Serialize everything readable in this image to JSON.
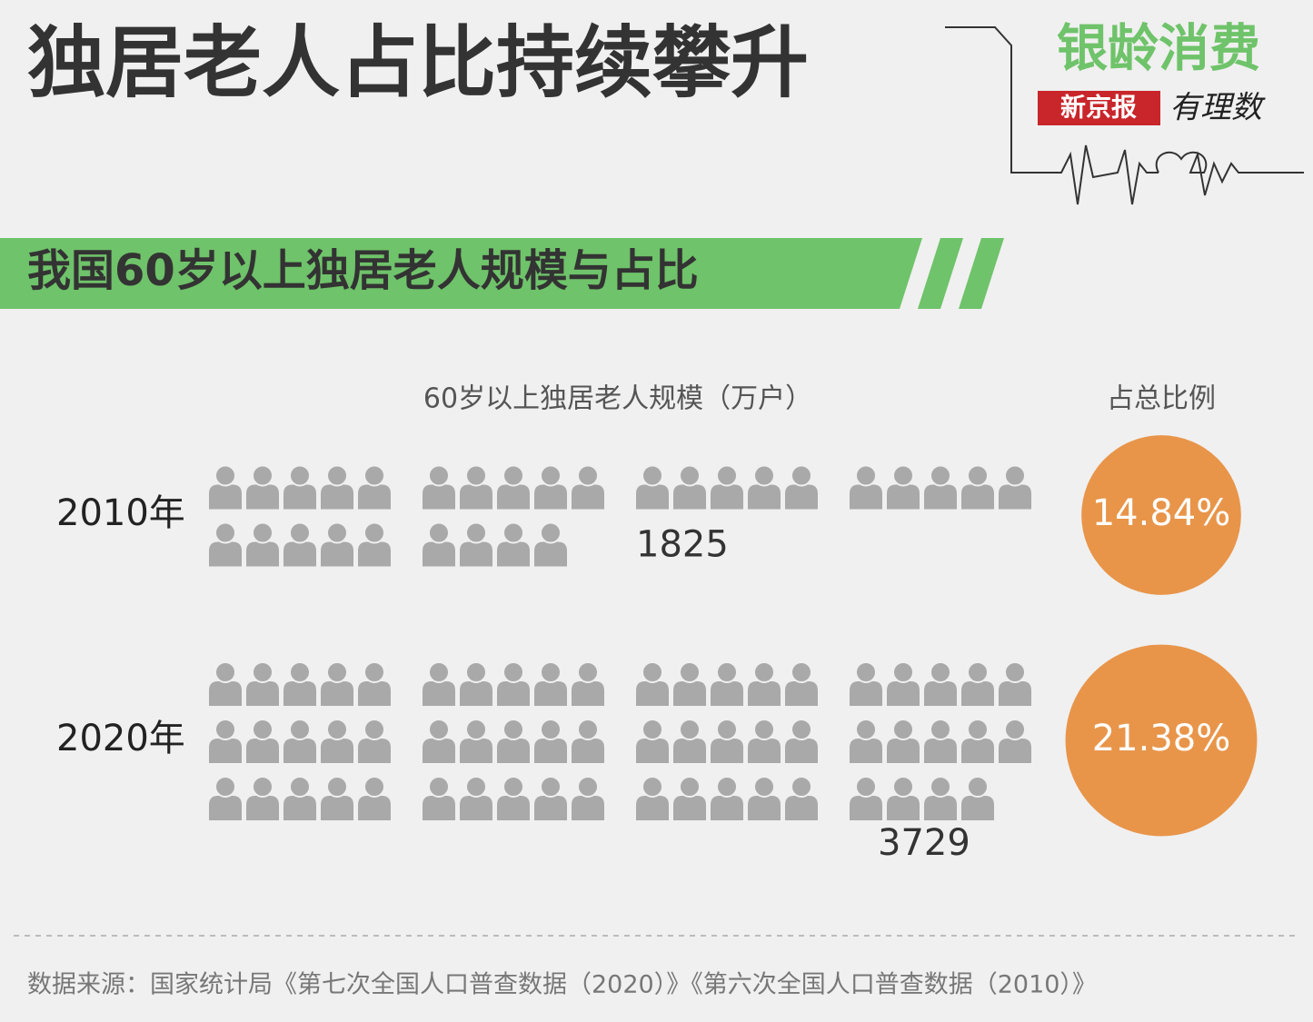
{
  "chart_data": {
    "type": "pictogram",
    "title": "独居老人占比持续攀升",
    "subtitle": "我国60岁以上独居老人规模与占比",
    "value_label": "60岁以上独居老人规模（万户）",
    "share_label": "占总比例",
    "categories": [
      "2010年",
      "2020年"
    ],
    "values": [
      1825,
      3729
    ],
    "shares": [
      14.84,
      21.38
    ],
    "share_labels": [
      "14.84%",
      "21.38%"
    ],
    "icon_color": "#a9a9a9",
    "share_color": "#e8954a",
    "banner_color": "#6fc36a",
    "source": "数据来源：国家统计局《第七次全国人口普查数据（2020）》《第六次全国人口普查数据（2010）》"
  },
  "logo": {
    "title": "银龄消费",
    "publisher": "新京报",
    "column": "有理数"
  }
}
